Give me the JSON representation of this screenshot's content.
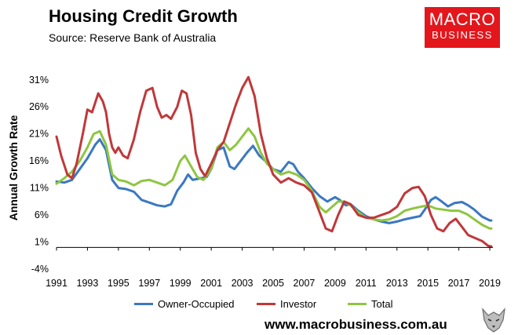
{
  "header": {
    "title": "Housing Credit Growth",
    "subtitle": "Source: Reserve Bank of Australia"
  },
  "logo": {
    "line1": "MACRO",
    "line2": "BUSINESS"
  },
  "website": "www.macrobusiness.com.au",
  "colors": {
    "owner": "#3b78c2",
    "investor": "#c0383a",
    "total": "#8ec640",
    "logo": "#e3161c"
  },
  "chart_data": {
    "type": "line",
    "title": "Housing Credit Growth",
    "ylabel": "Annual Growth Rate",
    "xlim": [
      1991,
      2019.2
    ],
    "ylim": [
      -4,
      33
    ],
    "yticks": [
      -4,
      1,
      6,
      11,
      16,
      21,
      26,
      31
    ],
    "ytick_labels": [
      "-4%",
      "1%",
      "6%",
      "11%",
      "16%",
      "21%",
      "26%",
      "31%"
    ],
    "xticks": [
      1991,
      1993,
      1995,
      1997,
      1999,
      2001,
      2003,
      2005,
      2007,
      2009,
      2011,
      2013,
      2015,
      2017,
      2019
    ],
    "legend_position": "bottom",
    "series": [
      {
        "name": "Owner-Occupied",
        "color": "#3b78c2",
        "points": [
          [
            1991,
            12.2
          ],
          [
            1991.5,
            12.0
          ],
          [
            1992,
            12.5
          ],
          [
            1992.5,
            14.5
          ],
          [
            1993,
            16.5
          ],
          [
            1993.5,
            19.0
          ],
          [
            1993.8,
            20.0
          ],
          [
            1994.2,
            18.0
          ],
          [
            1994.6,
            12.5
          ],
          [
            1995,
            11.0
          ],
          [
            1995.5,
            10.8
          ],
          [
            1996,
            10.3
          ],
          [
            1996.5,
            8.8
          ],
          [
            1997,
            8.3
          ],
          [
            1997.5,
            7.8
          ],
          [
            1998,
            7.6
          ],
          [
            1998.4,
            8.0
          ],
          [
            1998.8,
            10.5
          ],
          [
            1999.2,
            12.0
          ],
          [
            1999.5,
            13.5
          ],
          [
            1999.8,
            12.5
          ],
          [
            2000.3,
            12.8
          ],
          [
            2000.7,
            13.0
          ],
          [
            2001,
            14.5
          ],
          [
            2001.4,
            18.0
          ],
          [
            2001.8,
            18.5
          ],
          [
            2002.2,
            15.0
          ],
          [
            2002.5,
            14.5
          ],
          [
            2002.9,
            16.0
          ],
          [
            2003.3,
            17.5
          ],
          [
            2003.7,
            18.8
          ],
          [
            2004.1,
            17.0
          ],
          [
            2004.5,
            16.0
          ],
          [
            2005,
            14.5
          ],
          [
            2005.5,
            14.0
          ],
          [
            2006,
            15.8
          ],
          [
            2006.3,
            15.4
          ],
          [
            2006.6,
            14.0
          ],
          [
            2007,
            12.8
          ],
          [
            2007.5,
            11.0
          ],
          [
            2008,
            9.5
          ],
          [
            2008.5,
            8.5
          ],
          [
            2009,
            9.3
          ],
          [
            2009.3,
            8.8
          ],
          [
            2009.7,
            7.8
          ],
          [
            2010,
            8.0
          ],
          [
            2010.5,
            6.8
          ],
          [
            2011,
            5.8
          ],
          [
            2011.5,
            5.2
          ],
          [
            2012,
            4.8
          ],
          [
            2012.5,
            4.5
          ],
          [
            2013,
            4.8
          ],
          [
            2013.5,
            5.2
          ],
          [
            2014,
            5.5
          ],
          [
            2014.5,
            5.8
          ],
          [
            2014.8,
            7.0
          ],
          [
            2015.2,
            8.8
          ],
          [
            2015.5,
            9.3
          ],
          [
            2015.9,
            8.5
          ],
          [
            2016.3,
            7.6
          ],
          [
            2016.7,
            8.2
          ],
          [
            2017.2,
            8.4
          ],
          [
            2017.6,
            7.8
          ],
          [
            2018,
            7.0
          ],
          [
            2018.5,
            5.7
          ],
          [
            2019,
            5.0
          ],
          [
            2019.1,
            5.0
          ]
        ]
      },
      {
        "name": "Investor",
        "color": "#c0383a",
        "points": [
          [
            1991,
            20.5
          ],
          [
            1991.3,
            17.0
          ],
          [
            1991.7,
            13.5
          ],
          [
            1992,
            12.8
          ],
          [
            1992.3,
            15.5
          ],
          [
            1992.7,
            21.0
          ],
          [
            1993,
            25.5
          ],
          [
            1993.3,
            25.0
          ],
          [
            1993.7,
            28.5
          ],
          [
            1994,
            27.0
          ],
          [
            1994.2,
            25.0
          ],
          [
            1994.4,
            21.0
          ],
          [
            1994.6,
            18.5
          ],
          [
            1994.8,
            17.5
          ],
          [
            1995,
            18.5
          ],
          [
            1995.3,
            17.0
          ],
          [
            1995.6,
            16.5
          ],
          [
            1996,
            20.0
          ],
          [
            1996.4,
            25.0
          ],
          [
            1996.8,
            29.0
          ],
          [
            1997.2,
            29.5
          ],
          [
            1997.5,
            26.0
          ],
          [
            1997.8,
            24.0
          ],
          [
            1998.1,
            24.5
          ],
          [
            1998.4,
            23.8
          ],
          [
            1998.8,
            26.0
          ],
          [
            1999.1,
            29.0
          ],
          [
            1999.4,
            28.5
          ],
          [
            1999.7,
            24.5
          ],
          [
            2000,
            17.5
          ],
          [
            2000.3,
            14.5
          ],
          [
            2000.6,
            13.2
          ],
          [
            2001,
            15.5
          ],
          [
            2001.4,
            18.0
          ],
          [
            2001.8,
            19.5
          ],
          [
            2002.2,
            23.0
          ],
          [
            2002.6,
            26.5
          ],
          [
            2003,
            29.5
          ],
          [
            2003.4,
            31.5
          ],
          [
            2003.8,
            28.0
          ],
          [
            2004.2,
            21.0
          ],
          [
            2004.6,
            16.5
          ],
          [
            2005,
            13.5
          ],
          [
            2005.5,
            12.0
          ],
          [
            2006,
            12.8
          ],
          [
            2006.5,
            12.0
          ],
          [
            2007,
            11.5
          ],
          [
            2007.5,
            10.2
          ],
          [
            2008,
            6.5
          ],
          [
            2008.4,
            3.5
          ],
          [
            2008.8,
            3.0
          ],
          [
            2009.2,
            6.0
          ],
          [
            2009.6,
            8.5
          ],
          [
            2010,
            8.0
          ],
          [
            2010.5,
            6.0
          ],
          [
            2011,
            5.5
          ],
          [
            2011.5,
            5.5
          ],
          [
            2012,
            6.0
          ],
          [
            2012.5,
            6.5
          ],
          [
            2013,
            7.5
          ],
          [
            2013.5,
            10.0
          ],
          [
            2014,
            11.0
          ],
          [
            2014.4,
            11.2
          ],
          [
            2014.8,
            9.5
          ],
          [
            2015.2,
            6.0
          ],
          [
            2015.6,
            3.5
          ],
          [
            2016,
            3.0
          ],
          [
            2016.4,
            4.5
          ],
          [
            2016.8,
            5.3
          ],
          [
            2017.2,
            3.8
          ],
          [
            2017.6,
            2.3
          ],
          [
            2018,
            1.8
          ],
          [
            2018.5,
            1.2
          ],
          [
            2018.9,
            0.3
          ],
          [
            2019.1,
            0.2
          ]
        ]
      },
      {
        "name": "Total",
        "color": "#8ec640",
        "points": [
          [
            1991,
            11.8
          ],
          [
            1991.5,
            12.8
          ],
          [
            1992,
            14.0
          ],
          [
            1992.5,
            16.0
          ],
          [
            1993,
            18.5
          ],
          [
            1993.4,
            21.0
          ],
          [
            1993.8,
            21.5
          ],
          [
            1994.2,
            19.0
          ],
          [
            1994.6,
            13.5
          ],
          [
            1995,
            12.5
          ],
          [
            1995.5,
            12.2
          ],
          [
            1996,
            11.5
          ],
          [
            1996.5,
            12.3
          ],
          [
            1997,
            12.5
          ],
          [
            1997.5,
            12.0
          ],
          [
            1998,
            11.5
          ],
          [
            1998.5,
            12.5
          ],
          [
            1999,
            16.0
          ],
          [
            1999.3,
            17.0
          ],
          [
            1999.7,
            15.0
          ],
          [
            2000.1,
            13.0
          ],
          [
            2000.5,
            12.5
          ],
          [
            2001,
            14.5
          ],
          [
            2001.4,
            18.5
          ],
          [
            2001.8,
            19.5
          ],
          [
            2002.2,
            18.0
          ],
          [
            2002.6,
            19.0
          ],
          [
            2003,
            20.5
          ],
          [
            2003.4,
            22.0
          ],
          [
            2003.8,
            20.5
          ],
          [
            2004.2,
            17.5
          ],
          [
            2004.6,
            15.5
          ],
          [
            2005,
            14.5
          ],
          [
            2005.5,
            13.5
          ],
          [
            2006,
            14.0
          ],
          [
            2006.5,
            13.5
          ],
          [
            2007,
            12.5
          ],
          [
            2007.5,
            10.5
          ],
          [
            2008,
            7.5
          ],
          [
            2008.4,
            6.5
          ],
          [
            2008.8,
            7.5
          ],
          [
            2009.2,
            8.5
          ],
          [
            2009.6,
            8.5
          ],
          [
            2010,
            7.8
          ],
          [
            2010.5,
            6.5
          ],
          [
            2011,
            5.5
          ],
          [
            2011.5,
            5.2
          ],
          [
            2012,
            5.0
          ],
          [
            2012.5,
            5.2
          ],
          [
            2013,
            5.8
          ],
          [
            2013.5,
            6.8
          ],
          [
            2014,
            7.2
          ],
          [
            2014.5,
            7.5
          ],
          [
            2015,
            7.8
          ],
          [
            2015.5,
            7.2
          ],
          [
            2016,
            7.0
          ],
          [
            2016.5,
            6.8
          ],
          [
            2017,
            6.8
          ],
          [
            2017.5,
            6.2
          ],
          [
            2018,
            5.2
          ],
          [
            2018.5,
            4.2
          ],
          [
            2019,
            3.5
          ],
          [
            2019.1,
            3.5
          ]
        ]
      }
    ]
  }
}
